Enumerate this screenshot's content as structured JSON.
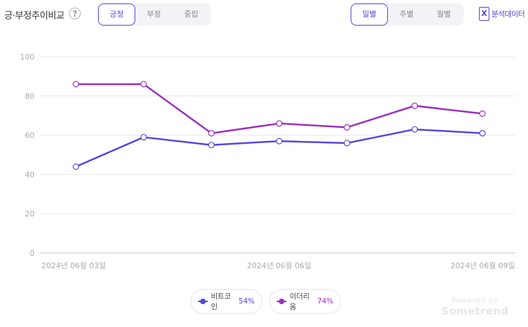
{
  "header": {
    "title": "긍·부정추이비교",
    "help_icon": "?",
    "sentiment_tabs": [
      "긍정",
      "부정",
      "중립"
    ],
    "sentiment_active": "긍정",
    "period_tabs": [
      "일별",
      "주별",
      "월별"
    ],
    "period_active": "일별",
    "export_icon_text": "X",
    "export_label": "분석데이터"
  },
  "legend": [
    {
      "name": "비트코인",
      "percent": "54%",
      "color": "#5544dd"
    },
    {
      "name": "이더리움",
      "percent": "74%",
      "color": "#9b2fc0"
    }
  ],
  "branding": {
    "line1": "Powered by",
    "line2": "Sometrend"
  },
  "chart_data": {
    "type": "line",
    "x": [
      "2024년 06월 03일",
      "2024년 06월 04일",
      "2024년 06월 05일",
      "2024년 06월 06일",
      "2024년 06월 07일",
      "2024년 06월 08일",
      "2024년 06월 09일"
    ],
    "x_tick_labels": [
      "2024년 06월 03일",
      "2024년 06월 06일",
      "2024년 06월 09일"
    ],
    "series": [
      {
        "name": "비트코인",
        "color": "#5544dd",
        "values": [
          44,
          59,
          55,
          57,
          56,
          63,
          61
        ]
      },
      {
        "name": "이더리움",
        "color": "#9b2fc0",
        "values": [
          86,
          86,
          61,
          66,
          64,
          75,
          71
        ]
      }
    ],
    "ylim": [
      0,
      100
    ],
    "yticks": [
      0,
      20,
      40,
      60,
      80,
      100
    ],
    "grid": true,
    "title": "",
    "xlabel": "",
    "ylabel": "",
    "legend_position": "bottom-center"
  }
}
